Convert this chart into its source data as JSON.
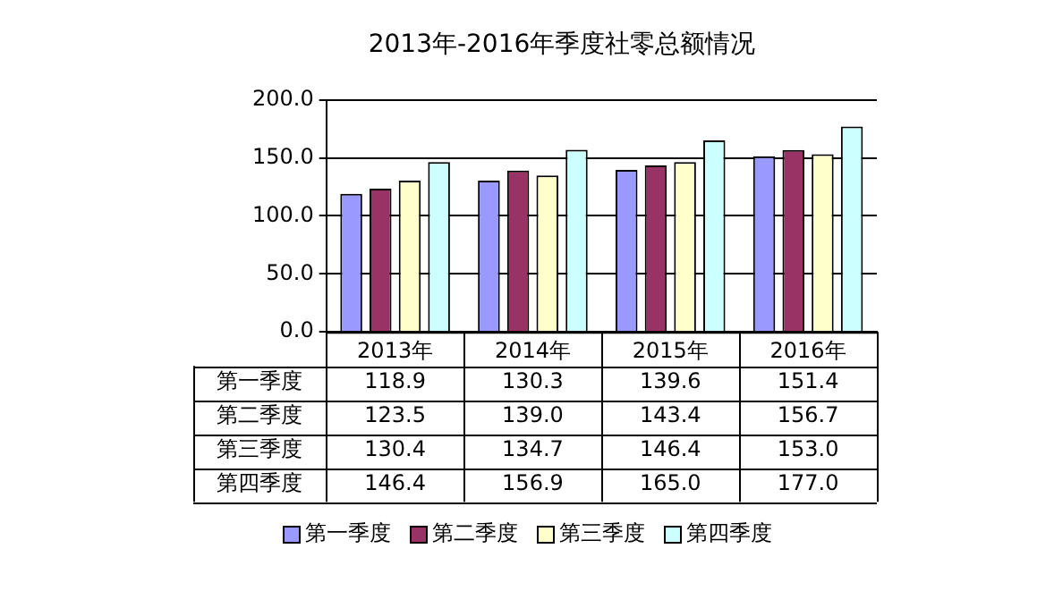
{
  "chart_data": {
    "type": "bar",
    "title": "2013年-2016年季度社零总额情况",
    "categories": [
      "2013年",
      "2014年",
      "2015年",
      "2016年"
    ],
    "series": [
      {
        "name": "第一季度",
        "color": "#9999ff",
        "values": [
          118.9,
          130.3,
          139.6,
          151.4
        ],
        "value_labels": [
          "118.9",
          "130.3",
          "139.6",
          "151.4"
        ]
      },
      {
        "name": "第二季度",
        "color": "#993366",
        "values": [
          123.5,
          139.0,
          143.4,
          156.7
        ],
        "value_labels": [
          "123.5",
          "139.0",
          "143.4",
          "156.7"
        ]
      },
      {
        "name": "第三季度",
        "color": "#ffffcc",
        "values": [
          130.4,
          134.7,
          146.4,
          153.0
        ],
        "value_labels": [
          "130.4",
          "134.7",
          "146.4",
          "153.0"
        ]
      },
      {
        "name": "第四季度",
        "color": "#ccffff",
        "values": [
          146.4,
          156.9,
          165.0,
          177.0
        ],
        "value_labels": [
          "146.4",
          "156.9",
          "165.0",
          "177.0"
        ]
      }
    ],
    "ylim": [
      0,
      200
    ],
    "yticks": [
      {
        "value": 0,
        "label": "0.0"
      },
      {
        "value": 50,
        "label": "50.0"
      },
      {
        "value": 100,
        "label": "100.0"
      },
      {
        "value": 150,
        "label": "150.0"
      },
      {
        "value": 200,
        "label": "200.0"
      }
    ],
    "grid": "y",
    "legend": "bottom"
  }
}
